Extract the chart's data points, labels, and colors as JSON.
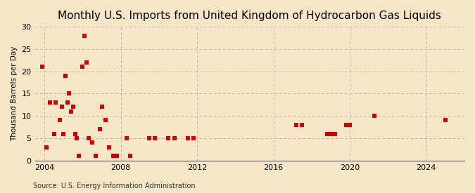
{
  "title": "Monthly U.S. Imports from United Kingdom of Hydrocarbon Gas Liquids",
  "ylabel": "Thousand Barrels per Day",
  "source": "Source: U.S. Energy Information Administration",
  "background_color": "#f5e6c8",
  "plot_bg_color": "#f5e6c8",
  "marker_color": "#cc0000",
  "marker_size": 5,
  "xlim": [
    2003.5,
    2026.0
  ],
  "ylim": [
    0,
    30
  ],
  "yticks": [
    0,
    5,
    10,
    15,
    20,
    25,
    30
  ],
  "xticks": [
    2004,
    2008,
    2012,
    2016,
    2020,
    2024
  ],
  "data_x": [
    2003.9,
    2004.1,
    2004.3,
    2004.5,
    2004.6,
    2004.8,
    2004.9,
    2005.0,
    2005.1,
    2005.2,
    2005.3,
    2005.4,
    2005.5,
    2005.6,
    2005.7,
    2005.8,
    2006.0,
    2006.1,
    2006.2,
    2006.3,
    2006.5,
    2006.7,
    2006.9,
    2007.0,
    2007.2,
    2007.4,
    2007.6,
    2007.8,
    2008.3,
    2008.5,
    2009.5,
    2009.8,
    2010.5,
    2010.8,
    2011.5,
    2011.8,
    2017.2,
    2017.5,
    2018.8,
    2019.0,
    2019.2,
    2019.8,
    2020.0,
    2021.3,
    2025.0
  ],
  "data_y": [
    21,
    3,
    13,
    6,
    13,
    9,
    12,
    6,
    19,
    13,
    15,
    11,
    12,
    6,
    5,
    1,
    21,
    28,
    22,
    5,
    4,
    1,
    7,
    12,
    9,
    3,
    1,
    1,
    5,
    1,
    5,
    5,
    5,
    5,
    5,
    5,
    8,
    8,
    6,
    6,
    6,
    8,
    8,
    10,
    9
  ]
}
